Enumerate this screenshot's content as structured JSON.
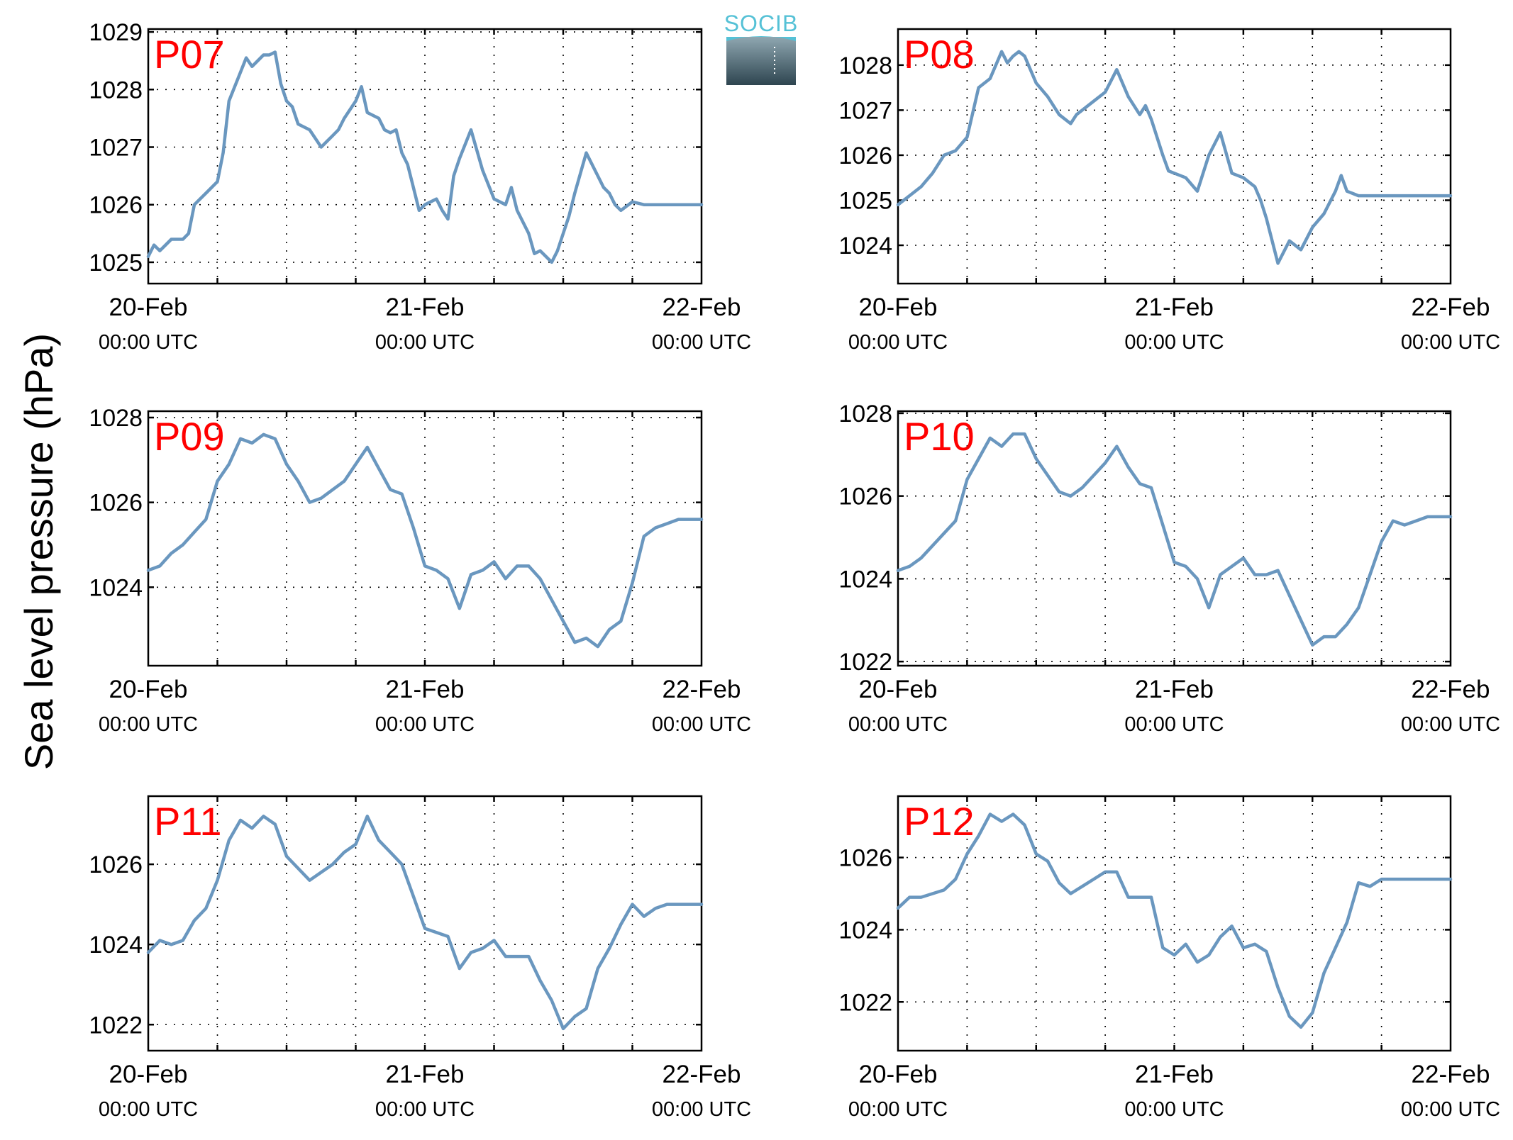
{
  "figure": {
    "ylabel": "Sea level pressure (hPa)",
    "logo_text": "SOCIB",
    "colors": {
      "line": "#6a97bf",
      "panel_label": "#ff0000",
      "logo_text": "#55c1d6",
      "logo_dark": "#2e4550",
      "logo_light": "#8fa7b1"
    }
  },
  "chart_data": [
    {
      "type": "line",
      "panel_label": "P07",
      "ylim": [
        1024.63,
        1029.05
      ],
      "yticks": [
        1025,
        1026,
        1027,
        1028,
        1029
      ],
      "xlim": [
        0,
        48
      ],
      "grid": true,
      "xticklabels": [
        {
          "x": 0,
          "date": "20-Feb",
          "time": "00:00 UTC"
        },
        {
          "x": 24,
          "date": "21-Feb",
          "time": "00:00 UTC"
        },
        {
          "x": 48,
          "date": "22-Feb",
          "time": "00:00 UTC"
        }
      ],
      "x": [
        0,
        0.5,
        1,
        1.5,
        2,
        3,
        3.5,
        4,
        4.5,
        5,
        5.5,
        6,
        6.5,
        7,
        8,
        8.5,
        9,
        10,
        10.5,
        11,
        11.5,
        12,
        12.5,
        13,
        14,
        15,
        15.5,
        16,
        16.5,
        17,
        18,
        18.5,
        19,
        20,
        20.5,
        21,
        21.5,
        22,
        22.5,
        23,
        23.5,
        24,
        25,
        25.5,
        26,
        26.5,
        27,
        28,
        29,
        30,
        31,
        31.5,
        32,
        33,
        33.5,
        34,
        35,
        35.5,
        36,
        36.5,
        37,
        38,
        39,
        39.5,
        40,
        40.5,
        41,
        42,
        43,
        44,
        45,
        45.5,
        46,
        46.5,
        47,
        48
      ],
      "y": [
        1025.1,
        1025.3,
        1025.2,
        1025.3,
        1025.4,
        1025.4,
        1025.5,
        1026.0,
        1026.1,
        1026.2,
        1026.3,
        1026.4,
        1026.9,
        1027.8,
        1028.3,
        1028.55,
        1028.4,
        1028.6,
        1028.6,
        1028.65,
        1028.1,
        1027.8,
        1027.7,
        1027.4,
        1027.3,
        1027.0,
        1027.1,
        1027.2,
        1027.3,
        1027.5,
        1027.8,
        1028.05,
        1027.6,
        1027.5,
        1027.3,
        1027.25,
        1027.3,
        1026.9,
        1026.7,
        1026.3,
        1025.9,
        1026.0,
        1026.1,
        1025.9,
        1025.75,
        1026.5,
        1026.8,
        1027.3,
        1026.6,
        1026.1,
        1026.0,
        1026.3,
        1025.9,
        1025.5,
        1025.15,
        1025.2,
        1025.0,
        1025.2,
        1025.5,
        1025.8,
        1026.2,
        1026.9,
        1026.5,
        1026.3,
        1026.2,
        1026.0,
        1025.9,
        1026.05,
        1026.0,
        1026.0,
        1026.0,
        1026.0,
        1026.0,
        1026.0,
        1026.0,
        1026.0
      ]
    },
    {
      "type": "line",
      "panel_label": "P08",
      "ylim": [
        1023.15,
        1028.8
      ],
      "yticks": [
        1024,
        1025,
        1026,
        1027,
        1028
      ],
      "xlim": [
        0,
        48
      ],
      "grid": true,
      "xticklabels": [
        {
          "x": 0,
          "date": "20-Feb",
          "time": "00:00 UTC"
        },
        {
          "x": 24,
          "date": "21-Feb",
          "time": "00:00 UTC"
        },
        {
          "x": 48,
          "date": "22-Feb",
          "time": "00:00 UTC"
        }
      ],
      "x": [
        0,
        1,
        2,
        3,
        4,
        5,
        6,
        7,
        8,
        9,
        9.5,
        10,
        10.5,
        11,
        12,
        13,
        14,
        15,
        15.5,
        16,
        17,
        18,
        19,
        20,
        21,
        21.5,
        22,
        23,
        23.5,
        24,
        25,
        26,
        27,
        28,
        29,
        30,
        31,
        31.5,
        32,
        33,
        34,
        35,
        36,
        37,
        38,
        38.5,
        39,
        40,
        41,
        42,
        43,
        44,
        45,
        46,
        47,
        48
      ],
      "y": [
        1024.9,
        1025.1,
        1025.3,
        1025.6,
        1026.0,
        1026.1,
        1026.4,
        1027.5,
        1027.7,
        1028.3,
        1028.05,
        1028.2,
        1028.3,
        1028.2,
        1027.6,
        1027.3,
        1026.9,
        1026.7,
        1026.9,
        1027.0,
        1027.2,
        1027.4,
        1027.9,
        1027.3,
        1026.9,
        1027.1,
        1026.8,
        1026.0,
        1025.65,
        1025.6,
        1025.5,
        1025.2,
        1026.0,
        1026.5,
        1025.6,
        1025.5,
        1025.3,
        1025.0,
        1024.6,
        1023.6,
        1024.1,
        1023.9,
        1024.4,
        1024.7,
        1025.2,
        1025.55,
        1025.2,
        1025.1,
        1025.1,
        1025.1,
        1025.1,
        1025.1,
        1025.1,
        1025.1,
        1025.1,
        1025.1
      ]
    },
    {
      "type": "line",
      "panel_label": "P09",
      "ylim": [
        1022.15,
        1028.15
      ],
      "yticks": [
        1024,
        1026,
        1028
      ],
      "xlim": [
        0,
        48
      ],
      "grid": true,
      "xticklabels": [
        {
          "x": 0,
          "date": "20-Feb",
          "time": "00:00 UTC"
        },
        {
          "x": 24,
          "date": "21-Feb",
          "time": "00:00 UTC"
        },
        {
          "x": 48,
          "date": "22-Feb",
          "time": "00:00 UTC"
        }
      ],
      "x": [
        0,
        1,
        2,
        3,
        4,
        5,
        6,
        7,
        8,
        9,
        10,
        11,
        12,
        13,
        14,
        15,
        16,
        17,
        18,
        19,
        20,
        21,
        22,
        23,
        24,
        25,
        26,
        27,
        28,
        29,
        30,
        31,
        32,
        33,
        34,
        35,
        36,
        37,
        38,
        39,
        40,
        41,
        42,
        43,
        44,
        45,
        46,
        47,
        48
      ],
      "y": [
        1024.4,
        1024.5,
        1024.8,
        1025.0,
        1025.3,
        1025.6,
        1026.5,
        1026.9,
        1027.5,
        1027.4,
        1027.6,
        1027.5,
        1026.9,
        1026.5,
        1026.0,
        1026.1,
        1026.3,
        1026.5,
        1026.9,
        1027.3,
        1026.8,
        1026.3,
        1026.2,
        1025.4,
        1024.5,
        1024.4,
        1024.2,
        1023.5,
        1024.3,
        1024.4,
        1024.6,
        1024.2,
        1024.5,
        1024.5,
        1024.2,
        1023.7,
        1023.2,
        1022.7,
        1022.8,
        1022.6,
        1023.0,
        1023.2,
        1024.1,
        1025.2,
        1025.4,
        1025.5,
        1025.6,
        1025.6,
        1025.6
      ]
    },
    {
      "type": "line",
      "panel_label": "P10",
      "ylim": [
        1021.9,
        1028.05
      ],
      "yticks": [
        1022,
        1024,
        1026,
        1028
      ],
      "xlim": [
        0,
        48
      ],
      "grid": true,
      "xticklabels": [
        {
          "x": 0,
          "date": "20-Feb",
          "time": "00:00 UTC"
        },
        {
          "x": 24,
          "date": "21-Feb",
          "time": "00:00 UTC"
        },
        {
          "x": 48,
          "date": "22-Feb",
          "time": "00:00 UTC"
        }
      ],
      "x": [
        0,
        1,
        2,
        3,
        4,
        5,
        6,
        7,
        8,
        9,
        10,
        11,
        12,
        13,
        14,
        15,
        16,
        17,
        18,
        19,
        20,
        21,
        22,
        23,
        24,
        25,
        26,
        27,
        28,
        29,
        30,
        31,
        32,
        33,
        34,
        35,
        36,
        37,
        38,
        39,
        40,
        41,
        42,
        43,
        44,
        45,
        46,
        47,
        48
      ],
      "y": [
        1024.2,
        1024.3,
        1024.5,
        1024.8,
        1025.1,
        1025.4,
        1026.4,
        1026.9,
        1027.4,
        1027.2,
        1027.5,
        1027.5,
        1026.9,
        1026.5,
        1026.1,
        1026.0,
        1026.2,
        1026.5,
        1026.8,
        1027.2,
        1026.7,
        1026.3,
        1026.2,
        1025.3,
        1024.4,
        1024.3,
        1024.0,
        1023.3,
        1024.1,
        1024.3,
        1024.5,
        1024.1,
        1024.1,
        1024.2,
        1023.6,
        1023.0,
        1022.4,
        1022.6,
        1022.6,
        1022.9,
        1023.3,
        1024.1,
        1024.9,
        1025.4,
        1025.3,
        1025.4,
        1025.5,
        1025.5,
        1025.5
      ]
    },
    {
      "type": "line",
      "panel_label": "P11",
      "ylim": [
        1021.35,
        1027.7
      ],
      "yticks": [
        1022,
        1024,
        1026
      ],
      "xlim": [
        0,
        48
      ],
      "grid": true,
      "xticklabels": [
        {
          "x": 0,
          "date": "20-Feb",
          "time": "00:00 UTC"
        },
        {
          "x": 24,
          "date": "21-Feb",
          "time": "00:00 UTC"
        },
        {
          "x": 48,
          "date": "22-Feb",
          "time": "00:00 UTC"
        }
      ],
      "x": [
        0,
        1,
        2,
        3,
        4,
        5,
        6,
        7,
        8,
        9,
        10,
        11,
        12,
        13,
        14,
        15,
        16,
        17,
        18,
        19,
        20,
        21,
        22,
        23,
        24,
        25,
        26,
        27,
        28,
        29,
        30,
        31,
        32,
        33,
        34,
        35,
        36,
        37,
        38,
        39,
        40,
        41,
        42,
        43,
        44,
        45,
        46,
        47,
        48
      ],
      "y": [
        1023.8,
        1024.1,
        1024.0,
        1024.1,
        1024.6,
        1024.9,
        1025.6,
        1026.6,
        1027.1,
        1026.9,
        1027.2,
        1027.0,
        1026.2,
        1025.9,
        1025.6,
        1025.8,
        1026.0,
        1026.3,
        1026.5,
        1027.2,
        1026.6,
        1026.3,
        1026.0,
        1025.2,
        1024.4,
        1024.3,
        1024.2,
        1023.4,
        1023.8,
        1023.9,
        1024.1,
        1023.7,
        1023.7,
        1023.7,
        1023.1,
        1022.6,
        1021.9,
        1022.2,
        1022.4,
        1023.4,
        1023.9,
        1024.5,
        1025.0,
        1024.7,
        1024.9,
        1025.0,
        1025.0,
        1025.0,
        1025.0
      ]
    },
    {
      "type": "line",
      "panel_label": "P12",
      "ylim": [
        1020.65,
        1027.7
      ],
      "yticks": [
        1022,
        1024,
        1026
      ],
      "xlim": [
        0,
        48
      ],
      "grid": true,
      "xticklabels": [
        {
          "x": 0,
          "date": "20-Feb",
          "time": "00:00 UTC"
        },
        {
          "x": 24,
          "date": "21-Feb",
          "time": "00:00 UTC"
        },
        {
          "x": 48,
          "date": "22-Feb",
          "time": "00:00 UTC"
        }
      ],
      "x": [
        0,
        1,
        2,
        3,
        4,
        5,
        6,
        7,
        8,
        9,
        10,
        11,
        12,
        13,
        14,
        15,
        16,
        17,
        18,
        19,
        20,
        21,
        22,
        23,
        24,
        25,
        26,
        27,
        28,
        29,
        30,
        31,
        32,
        33,
        34,
        35,
        36,
        37,
        38,
        39,
        40,
        41,
        42,
        43,
        44,
        45,
        46,
        47,
        48
      ],
      "y": [
        1024.6,
        1024.9,
        1024.9,
        1025.0,
        1025.1,
        1025.4,
        1026.1,
        1026.6,
        1027.2,
        1027.0,
        1027.2,
        1026.9,
        1026.1,
        1025.9,
        1025.3,
        1025.0,
        1025.2,
        1025.4,
        1025.6,
        1025.6,
        1024.9,
        1024.9,
        1024.9,
        1023.5,
        1023.3,
        1023.6,
        1023.1,
        1023.3,
        1023.8,
        1024.1,
        1023.5,
        1023.6,
        1023.4,
        1022.4,
        1021.6,
        1021.3,
        1021.7,
        1022.8,
        1023.5,
        1024.2,
        1025.3,
        1025.2,
        1025.4,
        1025.4,
        1025.4,
        1025.4,
        1025.4,
        1025.4,
        1025.4
      ]
    }
  ]
}
